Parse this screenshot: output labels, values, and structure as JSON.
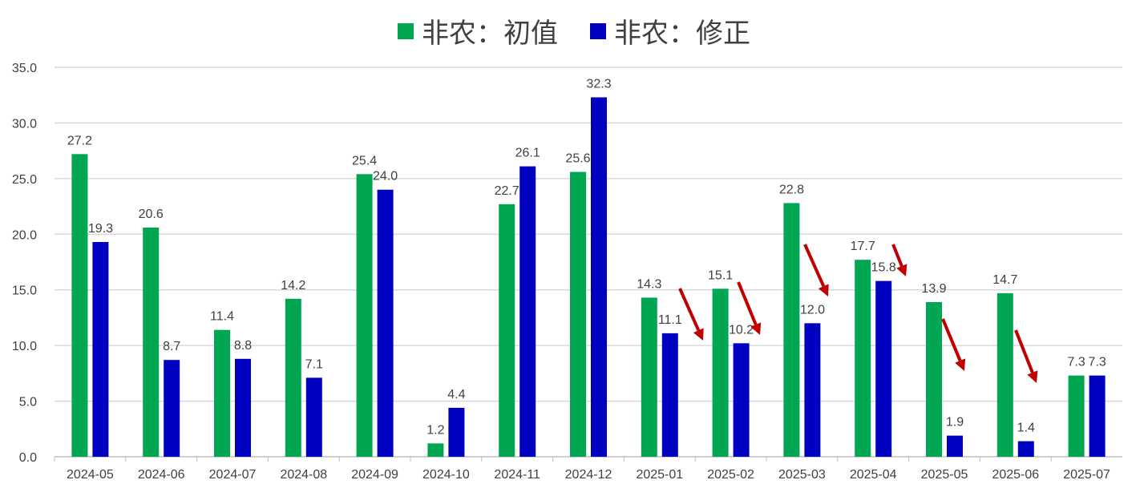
{
  "chart_data": {
    "type": "bar",
    "title": "",
    "xlabel": "",
    "ylabel": "",
    "ylim": [
      0,
      35
    ],
    "yticks": [
      "0.0",
      "5.0",
      "10.0",
      "15.0",
      "20.0",
      "25.0",
      "30.0",
      "35.0"
    ],
    "grid": true,
    "legend_position": "top",
    "categories": [
      "2024-05",
      "2024-06",
      "2024-07",
      "2024-08",
      "2024-09",
      "2024-10",
      "2024-11",
      "2024-12",
      "2025-01",
      "2025-02",
      "2025-03",
      "2025-04",
      "2025-05",
      "2025-06",
      "2025-07"
    ],
    "series": [
      {
        "name": "非农：初值",
        "color": "#00A651",
        "values": [
          27.2,
          20.6,
          11.4,
          14.2,
          25.4,
          1.2,
          22.7,
          25.6,
          14.3,
          15.1,
          22.8,
          17.7,
          13.9,
          14.7,
          7.3
        ]
      },
      {
        "name": "非农：修正",
        "color": "#0000C0",
        "values": [
          19.3,
          8.7,
          8.8,
          7.1,
          24.0,
          4.4,
          26.1,
          32.3,
          11.1,
          10.2,
          12.0,
          15.8,
          1.9,
          1.4,
          7.3
        ]
      }
    ],
    "annotations": {
      "type": "downward-revision-arrows",
      "color": "#C00000",
      "categories": [
        "2025-01",
        "2025-02",
        "2025-03",
        "2025-04",
        "2025-05",
        "2025-06"
      ]
    }
  }
}
